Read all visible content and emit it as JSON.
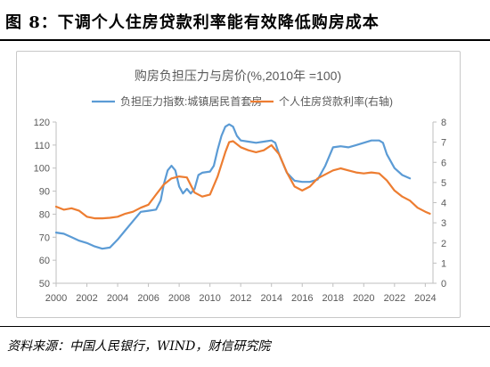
{
  "figure": {
    "title": "图 8：下调个人住房贷款利率能有效降低购房成本",
    "source": "资料来源：中国人民银行，WIND，财信研究院"
  },
  "chart_data": {
    "type": "line",
    "title": "购房负担压力与房价(%,2010年 =100)",
    "legend_position": "top",
    "grid": false,
    "x_ticks": [
      "2000",
      "2002",
      "2004",
      "2006",
      "2008",
      "2010",
      "2012",
      "2014",
      "2016",
      "2018",
      "2020",
      "2022",
      "2024"
    ],
    "xlim": [
      2000,
      2024.5
    ],
    "y_left": {
      "lim": [
        50,
        120
      ],
      "ticks": [
        "50",
        "60",
        "70",
        "80",
        "90",
        "100",
        "110",
        "120"
      ]
    },
    "y_right": {
      "lim": [
        0,
        8
      ],
      "ticks": [
        "0",
        "1",
        "2",
        "3",
        "4",
        "5",
        "6",
        "7",
        "8"
      ]
    },
    "series": [
      {
        "name": "负担压力指数:城镇居民首套房",
        "color": "#5b9bd5",
        "axis": "left",
        "points": [
          [
            2000,
            72
          ],
          [
            2000.5,
            71.5
          ],
          [
            2001,
            70
          ],
          [
            2001.5,
            68.5
          ],
          [
            2002,
            67.5
          ],
          [
            2002.5,
            66
          ],
          [
            2003,
            65
          ],
          [
            2003.5,
            65.5
          ],
          [
            2004,
            69
          ],
          [
            2004.5,
            73
          ],
          [
            2005,
            77
          ],
          [
            2005.5,
            81
          ],
          [
            2006,
            81.5
          ],
          [
            2006.5,
            82
          ],
          [
            2006.8,
            86
          ],
          [
            2007,
            93
          ],
          [
            2007.25,
            99
          ],
          [
            2007.5,
            101
          ],
          [
            2007.75,
            99
          ],
          [
            2008,
            92
          ],
          [
            2008.25,
            89
          ],
          [
            2008.5,
            91
          ],
          [
            2008.75,
            89
          ],
          [
            2009,
            91
          ],
          [
            2009.25,
            97
          ],
          [
            2009.5,
            98
          ],
          [
            2010,
            98.5
          ],
          [
            2010.25,
            101
          ],
          [
            2010.5,
            108
          ],
          [
            2010.75,
            114
          ],
          [
            2011,
            118
          ],
          [
            2011.25,
            119
          ],
          [
            2011.5,
            118
          ],
          [
            2011.75,
            114
          ],
          [
            2012,
            112
          ],
          [
            2012.5,
            111.5
          ],
          [
            2013,
            111
          ],
          [
            2013.5,
            111.5
          ],
          [
            2014,
            112
          ],
          [
            2014.25,
            111
          ],
          [
            2014.5,
            106
          ],
          [
            2015,
            98
          ],
          [
            2015.5,
            94.5
          ],
          [
            2016,
            94
          ],
          [
            2016.5,
            94
          ],
          [
            2017,
            95
          ],
          [
            2017.5,
            101
          ],
          [
            2018,
            109
          ],
          [
            2018.5,
            109.5
          ],
          [
            2019,
            109
          ],
          [
            2019.5,
            110
          ],
          [
            2020,
            111
          ],
          [
            2020.5,
            112
          ],
          [
            2021,
            112
          ],
          [
            2021.25,
            111
          ],
          [
            2021.5,
            106
          ],
          [
            2022,
            100
          ],
          [
            2022.5,
            97
          ],
          [
            2023,
            95.5
          ]
        ]
      },
      {
        "name": "个人住房贷款利率(右轴)",
        "color": "#ed7d31",
        "axis": "right",
        "points": [
          [
            2000,
            3.8
          ],
          [
            2000.5,
            3.65
          ],
          [
            2001,
            3.72
          ],
          [
            2001.5,
            3.6
          ],
          [
            2002,
            3.3
          ],
          [
            2002.5,
            3.22
          ],
          [
            2003,
            3.22
          ],
          [
            2003.5,
            3.25
          ],
          [
            2004,
            3.3
          ],
          [
            2004.5,
            3.45
          ],
          [
            2005,
            3.55
          ],
          [
            2005.5,
            3.75
          ],
          [
            2006,
            3.9
          ],
          [
            2006.5,
            4.4
          ],
          [
            2007,
            4.9
          ],
          [
            2007.5,
            5.2
          ],
          [
            2008,
            5.3
          ],
          [
            2008.5,
            5.25
          ],
          [
            2009,
            4.5
          ],
          [
            2009.5,
            4.3
          ],
          [
            2010,
            4.4
          ],
          [
            2010.5,
            5.3
          ],
          [
            2011,
            6.5
          ],
          [
            2011.25,
            7.0
          ],
          [
            2011.5,
            7.05
          ],
          [
            2012,
            6.75
          ],
          [
            2012.5,
            6.6
          ],
          [
            2013,
            6.5
          ],
          [
            2013.5,
            6.6
          ],
          [
            2014,
            6.85
          ],
          [
            2014.5,
            6.4
          ],
          [
            2015,
            5.5
          ],
          [
            2015.5,
            4.8
          ],
          [
            2016,
            4.6
          ],
          [
            2016.5,
            4.8
          ],
          [
            2017,
            5.2
          ],
          [
            2017.5,
            5.4
          ],
          [
            2018,
            5.6
          ],
          [
            2018.5,
            5.7
          ],
          [
            2019,
            5.6
          ],
          [
            2019.5,
            5.5
          ],
          [
            2020,
            5.45
          ],
          [
            2020.5,
            5.5
          ],
          [
            2021,
            5.45
          ],
          [
            2021.5,
            5.1
          ],
          [
            2022,
            4.6
          ],
          [
            2022.5,
            4.3
          ],
          [
            2023,
            4.1
          ],
          [
            2023.5,
            3.75
          ],
          [
            2024,
            3.55
          ],
          [
            2024.3,
            3.45
          ]
        ]
      }
    ]
  }
}
